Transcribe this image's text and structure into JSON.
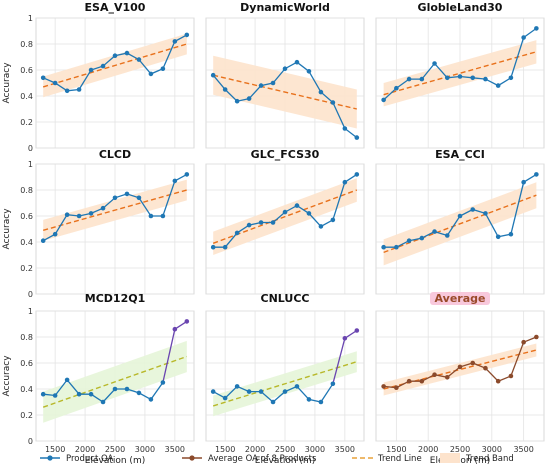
{
  "chart_data": {
    "type": "line",
    "layout": "3x3 grid of panels",
    "shared_axes": {
      "x_label": "Elevation (m)",
      "y_label": "Accuracy",
      "x_ticks": [
        1500,
        2000,
        2500,
        3000,
        3500
      ],
      "y_ticks": [
        0.0,
        0.2,
        0.4,
        0.6,
        0.8,
        1.0
      ],
      "x_range": [
        1180,
        3820
      ],
      "y_range": [
        0.0,
        1.0
      ],
      "grid": true
    },
    "x": [
      1300,
      1500,
      1700,
      1900,
      2100,
      2300,
      2500,
      2700,
      2900,
      3100,
      3300,
      3500,
      3700
    ],
    "panels": [
      {
        "title": "ESA_V100",
        "series": "Product OA",
        "color": "#1f77b4",
        "values": [
          0.54,
          0.5,
          0.44,
          0.45,
          0.6,
          0.63,
          0.71,
          0.73,
          0.68,
          0.57,
          0.61,
          0.82,
          0.87
        ],
        "trend": [
          0.47,
          0.8
        ],
        "band_halfwidth": 0.08,
        "trend_color": "#e8711c",
        "band_color": "#fde3cc"
      },
      {
        "title": "DynamicWorld",
        "series": "Product OA",
        "color": "#1f77b4",
        "values": [
          0.56,
          0.45,
          0.36,
          0.38,
          0.48,
          0.5,
          0.61,
          0.66,
          0.59,
          0.43,
          0.35,
          0.15,
          0.08
        ],
        "trend": [
          0.56,
          0.3
        ],
        "band_halfwidth": 0.15,
        "trend_color": "#e8711c",
        "band_color": "#fde3cc"
      },
      {
        "title": "GlobleLand30",
        "series": "Product OA",
        "color": "#1f77b4",
        "values": [
          0.37,
          0.46,
          0.53,
          0.53,
          0.65,
          0.54,
          0.55,
          0.54,
          0.53,
          0.48,
          0.54,
          0.85,
          0.92
        ],
        "trend": [
          0.41,
          0.74
        ],
        "band_halfwidth": 0.09,
        "trend_color": "#e8711c",
        "band_color": "#fde3cc"
      },
      {
        "title": "CLCD",
        "series": "Product OA",
        "color": "#1f77b4",
        "values": [
          0.41,
          0.46,
          0.61,
          0.6,
          0.62,
          0.66,
          0.74,
          0.77,
          0.74,
          0.6,
          0.6,
          0.87,
          0.92
        ],
        "trend": [
          0.49,
          0.8
        ],
        "band_halfwidth": 0.08,
        "trend_color": "#e8711c",
        "band_color": "#fde3cc"
      },
      {
        "title": "GLC_FCS30",
        "series": "Product OA",
        "color": "#1f77b4",
        "values": [
          0.36,
          0.36,
          0.47,
          0.53,
          0.55,
          0.55,
          0.63,
          0.68,
          0.62,
          0.52,
          0.57,
          0.86,
          0.92
        ],
        "trend": [
          0.39,
          0.8
        ],
        "band_halfwidth": 0.09,
        "trend_color": "#e8711c",
        "band_color": "#fde3cc"
      },
      {
        "title": "ESA_CCI",
        "series": "Product OA",
        "color": "#1f77b4",
        "values": [
          0.36,
          0.36,
          0.41,
          0.43,
          0.48,
          0.45,
          0.6,
          0.65,
          0.62,
          0.44,
          0.46,
          0.86,
          0.92
        ],
        "trend": [
          0.32,
          0.76
        ],
        "band_halfwidth": 0.1,
        "trend_color": "#e8711c",
        "band_color": "#fde3cc"
      },
      {
        "title": "MCD12Q1",
        "series": "Product OA",
        "color": "#1f77b4",
        "tail_color": "#6a45b0",
        "values": [
          0.36,
          0.35,
          0.47,
          0.36,
          0.36,
          0.3,
          0.4,
          0.4,
          0.37,
          0.32,
          0.45,
          0.86,
          0.92
        ],
        "trend": [
          0.26,
          0.65
        ],
        "band_halfwidth": 0.12,
        "trend_color": "#b8b82a",
        "band_color": "#e6f5d8"
      },
      {
        "title": "CNLUCC",
        "series": "Product OA",
        "color": "#1f77b4",
        "tail_color": "#6a45b0",
        "values": [
          0.38,
          0.33,
          0.42,
          0.38,
          0.38,
          0.3,
          0.38,
          0.42,
          0.32,
          0.3,
          0.44,
          0.79,
          0.85
        ],
        "trend": [
          0.27,
          0.61
        ],
        "band_halfwidth": 0.08,
        "trend_color": "#b8b82a",
        "band_color": "#e6f5d8"
      },
      {
        "title": "Average",
        "series": "Average OA of 8 Products",
        "color": "#8b4a2b",
        "highlight_title": true,
        "values": [
          0.42,
          0.41,
          0.46,
          0.46,
          0.51,
          0.49,
          0.57,
          0.6,
          0.56,
          0.46,
          0.5,
          0.76,
          0.8
        ],
        "trend": [
          0.4,
          0.7
        ],
        "band_halfwidth": 0.05,
        "trend_color": "#e8711c",
        "band_color": "#fde3cc"
      }
    ],
    "legend": {
      "placement": "bottom",
      "entries": [
        {
          "label": "Product OA",
          "kind": "line-marker",
          "color": "#1f77b4"
        },
        {
          "label": "Average OA of 8 Products",
          "kind": "line-marker",
          "color": "#8b4a2b"
        },
        {
          "label": "Trend Line",
          "kind": "dashed",
          "color": "#e8a23a"
        },
        {
          "label": "Trend Band",
          "kind": "patch",
          "color": "#fde3cc"
        }
      ]
    }
  }
}
